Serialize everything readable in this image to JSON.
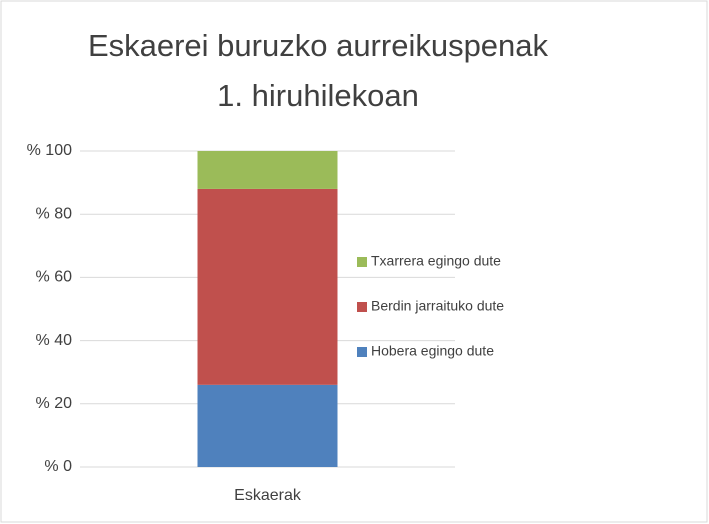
{
  "chart_data": {
    "type": "stacked_bar",
    "title": [
      "Eskaerei buruzko aurreikuspenak",
      "1. hiruhilekoan"
    ],
    "categories": [
      "Eskaerak"
    ],
    "series": [
      {
        "name": "Hobera egingo dute",
        "color": "#4f81bd",
        "values": [
          26
        ]
      },
      {
        "name": "Berdin jarraituko dute",
        "color": "#c0504d",
        "values": [
          62
        ]
      },
      {
        "name": "Txarrera egingo dute",
        "color": "#9bbb59",
        "values": [
          12
        ]
      }
    ],
    "ylim": [
      0,
      100
    ],
    "yticks": [
      {
        "value": 0,
        "label": "% 0"
      },
      {
        "value": 20,
        "label": "% 20"
      },
      {
        "value": 40,
        "label": "% 40"
      },
      {
        "value": 60,
        "label": "% 60"
      },
      {
        "value": 80,
        "label": "% 80"
      },
      {
        "value": 100,
        "label": "% 100"
      }
    ],
    "grid": true,
    "legend": "right"
  }
}
